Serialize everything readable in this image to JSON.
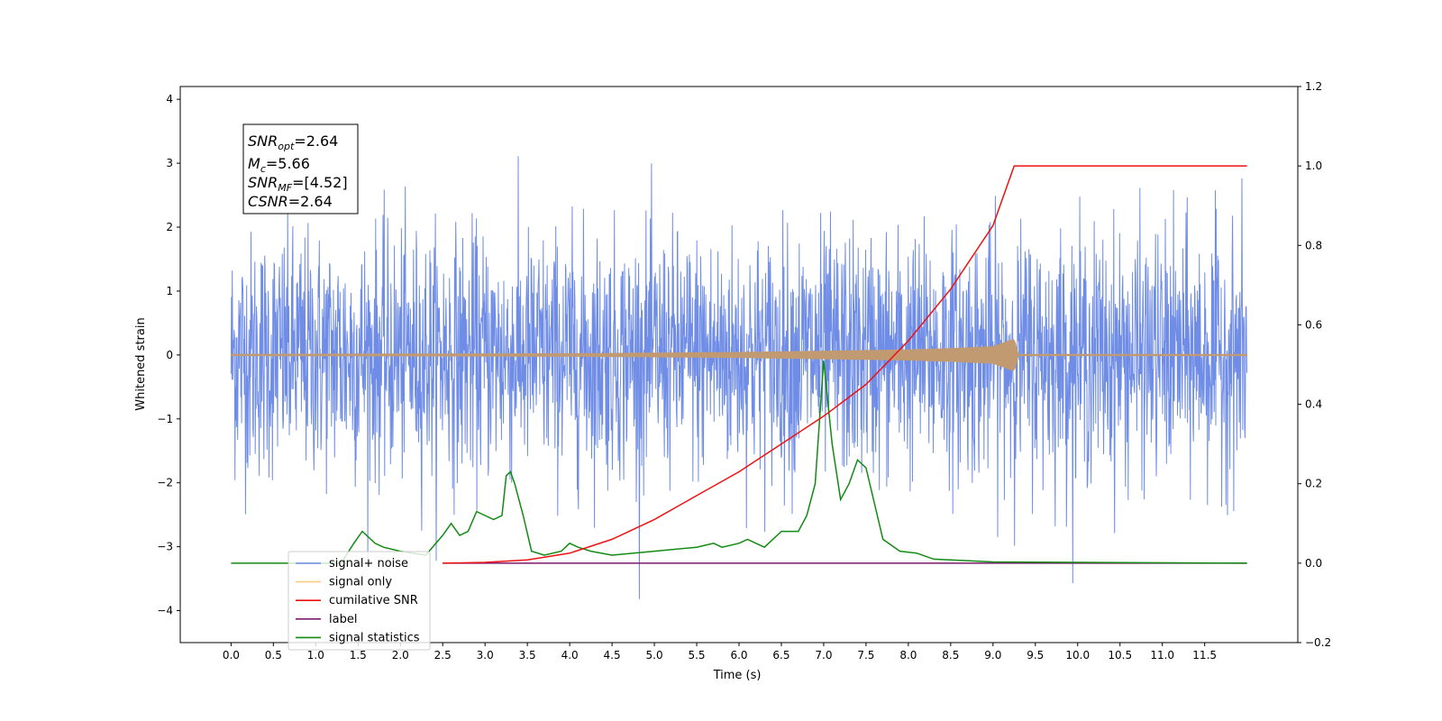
{
  "chart_data": {
    "type": "line",
    "xlabel": "Time (s)",
    "ylabel": "Whitened strain",
    "xlim": [
      -0.6,
      12.6
    ],
    "ylim": [
      -4.5,
      4.2
    ],
    "y2lim": [
      -0.2,
      1.2
    ],
    "x_ticks": [
      "0.0",
      "0.5",
      "1.0",
      "1.5",
      "2.0",
      "2.5",
      "3.0",
      "3.5",
      "4.0",
      "4.5",
      "5.0",
      "5.5",
      "6.0",
      "6.5",
      "7.0",
      "7.5",
      "8.0",
      "8.5",
      "9.0",
      "9.5",
      "10.0",
      "10.5",
      "11.0",
      "11.5"
    ],
    "y_ticks": [
      "4",
      "3",
      "2",
      "1",
      "0",
      "−1",
      "−2",
      "−3",
      "−4"
    ],
    "y2_ticks": [
      "1.2",
      "1.0",
      "0.8",
      "0.6",
      "0.4",
      "0.2",
      "0.0",
      "−0.2"
    ],
    "annotation": {
      "snr_opt": "=2.64",
      "mc": "=5.66",
      "snr_mf": "=[4.52]",
      "csnr": "=2.64"
    },
    "legend_position": "lower-left",
    "series": [
      {
        "name": "signal+ noise",
        "color": "#6f8de6",
        "style": "noise band, amplitude roughly ±2.5 with spikes to ±3.8, t 0 to 12"
      },
      {
        "name": "signal only",
        "color": "#ffb84d",
        "chirp_end": 9.25,
        "x": [
          0,
          4,
          6,
          7,
          8,
          8.5,
          9,
          9.25,
          9.3,
          12
        ],
        "amplitude": [
          0.01,
          0.02,
          0.04,
          0.06,
          0.08,
          0.1,
          0.13,
          0.25,
          0.01,
          0.01
        ]
      },
      {
        "name": "cumilative SNR",
        "color": "#ee1111",
        "axis": "right",
        "x": [
          2.5,
          3.0,
          3.5,
          4.0,
          4.5,
          5.0,
          5.5,
          6.0,
          6.5,
          7.0,
          7.5,
          8.0,
          8.5,
          9.0,
          9.25,
          12.0
        ],
        "y": [
          0.0,
          0.002,
          0.008,
          0.025,
          0.06,
          0.11,
          0.17,
          0.23,
          0.3,
          0.37,
          0.45,
          0.56,
          0.69,
          0.85,
          1.0,
          1.0
        ]
      },
      {
        "name": "label",
        "color": "#7b1a6e",
        "axis": "right",
        "x": [
          2.5,
          12.0
        ],
        "y": [
          0.0,
          0.0
        ]
      },
      {
        "name": "signal statistics",
        "color": "#138a13",
        "axis": "right",
        "x": [
          0.0,
          1.3,
          1.45,
          1.55,
          1.7,
          1.8,
          2.0,
          2.3,
          2.5,
          2.6,
          2.7,
          2.8,
          2.9,
          3.0,
          3.1,
          3.2,
          3.25,
          3.3,
          3.35,
          3.45,
          3.55,
          3.7,
          3.9,
          4.0,
          4.1,
          4.25,
          4.5,
          5.0,
          5.5,
          5.7,
          5.8,
          6.0,
          6.1,
          6.3,
          6.5,
          6.7,
          6.8,
          6.9,
          7.0,
          7.1,
          7.2,
          7.3,
          7.4,
          7.5,
          7.7,
          7.9,
          8.1,
          8.3,
          9.0,
          12.0
        ],
        "y": [
          0.0,
          0.0,
          0.05,
          0.08,
          0.05,
          0.04,
          0.03,
          0.02,
          0.07,
          0.1,
          0.07,
          0.08,
          0.13,
          0.12,
          0.11,
          0.12,
          0.22,
          0.23,
          0.2,
          0.12,
          0.03,
          0.02,
          0.03,
          0.05,
          0.04,
          0.03,
          0.02,
          0.03,
          0.04,
          0.05,
          0.04,
          0.05,
          0.06,
          0.04,
          0.08,
          0.08,
          0.12,
          0.2,
          0.51,
          0.3,
          0.16,
          0.2,
          0.26,
          0.24,
          0.06,
          0.03,
          0.025,
          0.01,
          0.003,
          0.0
        ]
      }
    ]
  }
}
